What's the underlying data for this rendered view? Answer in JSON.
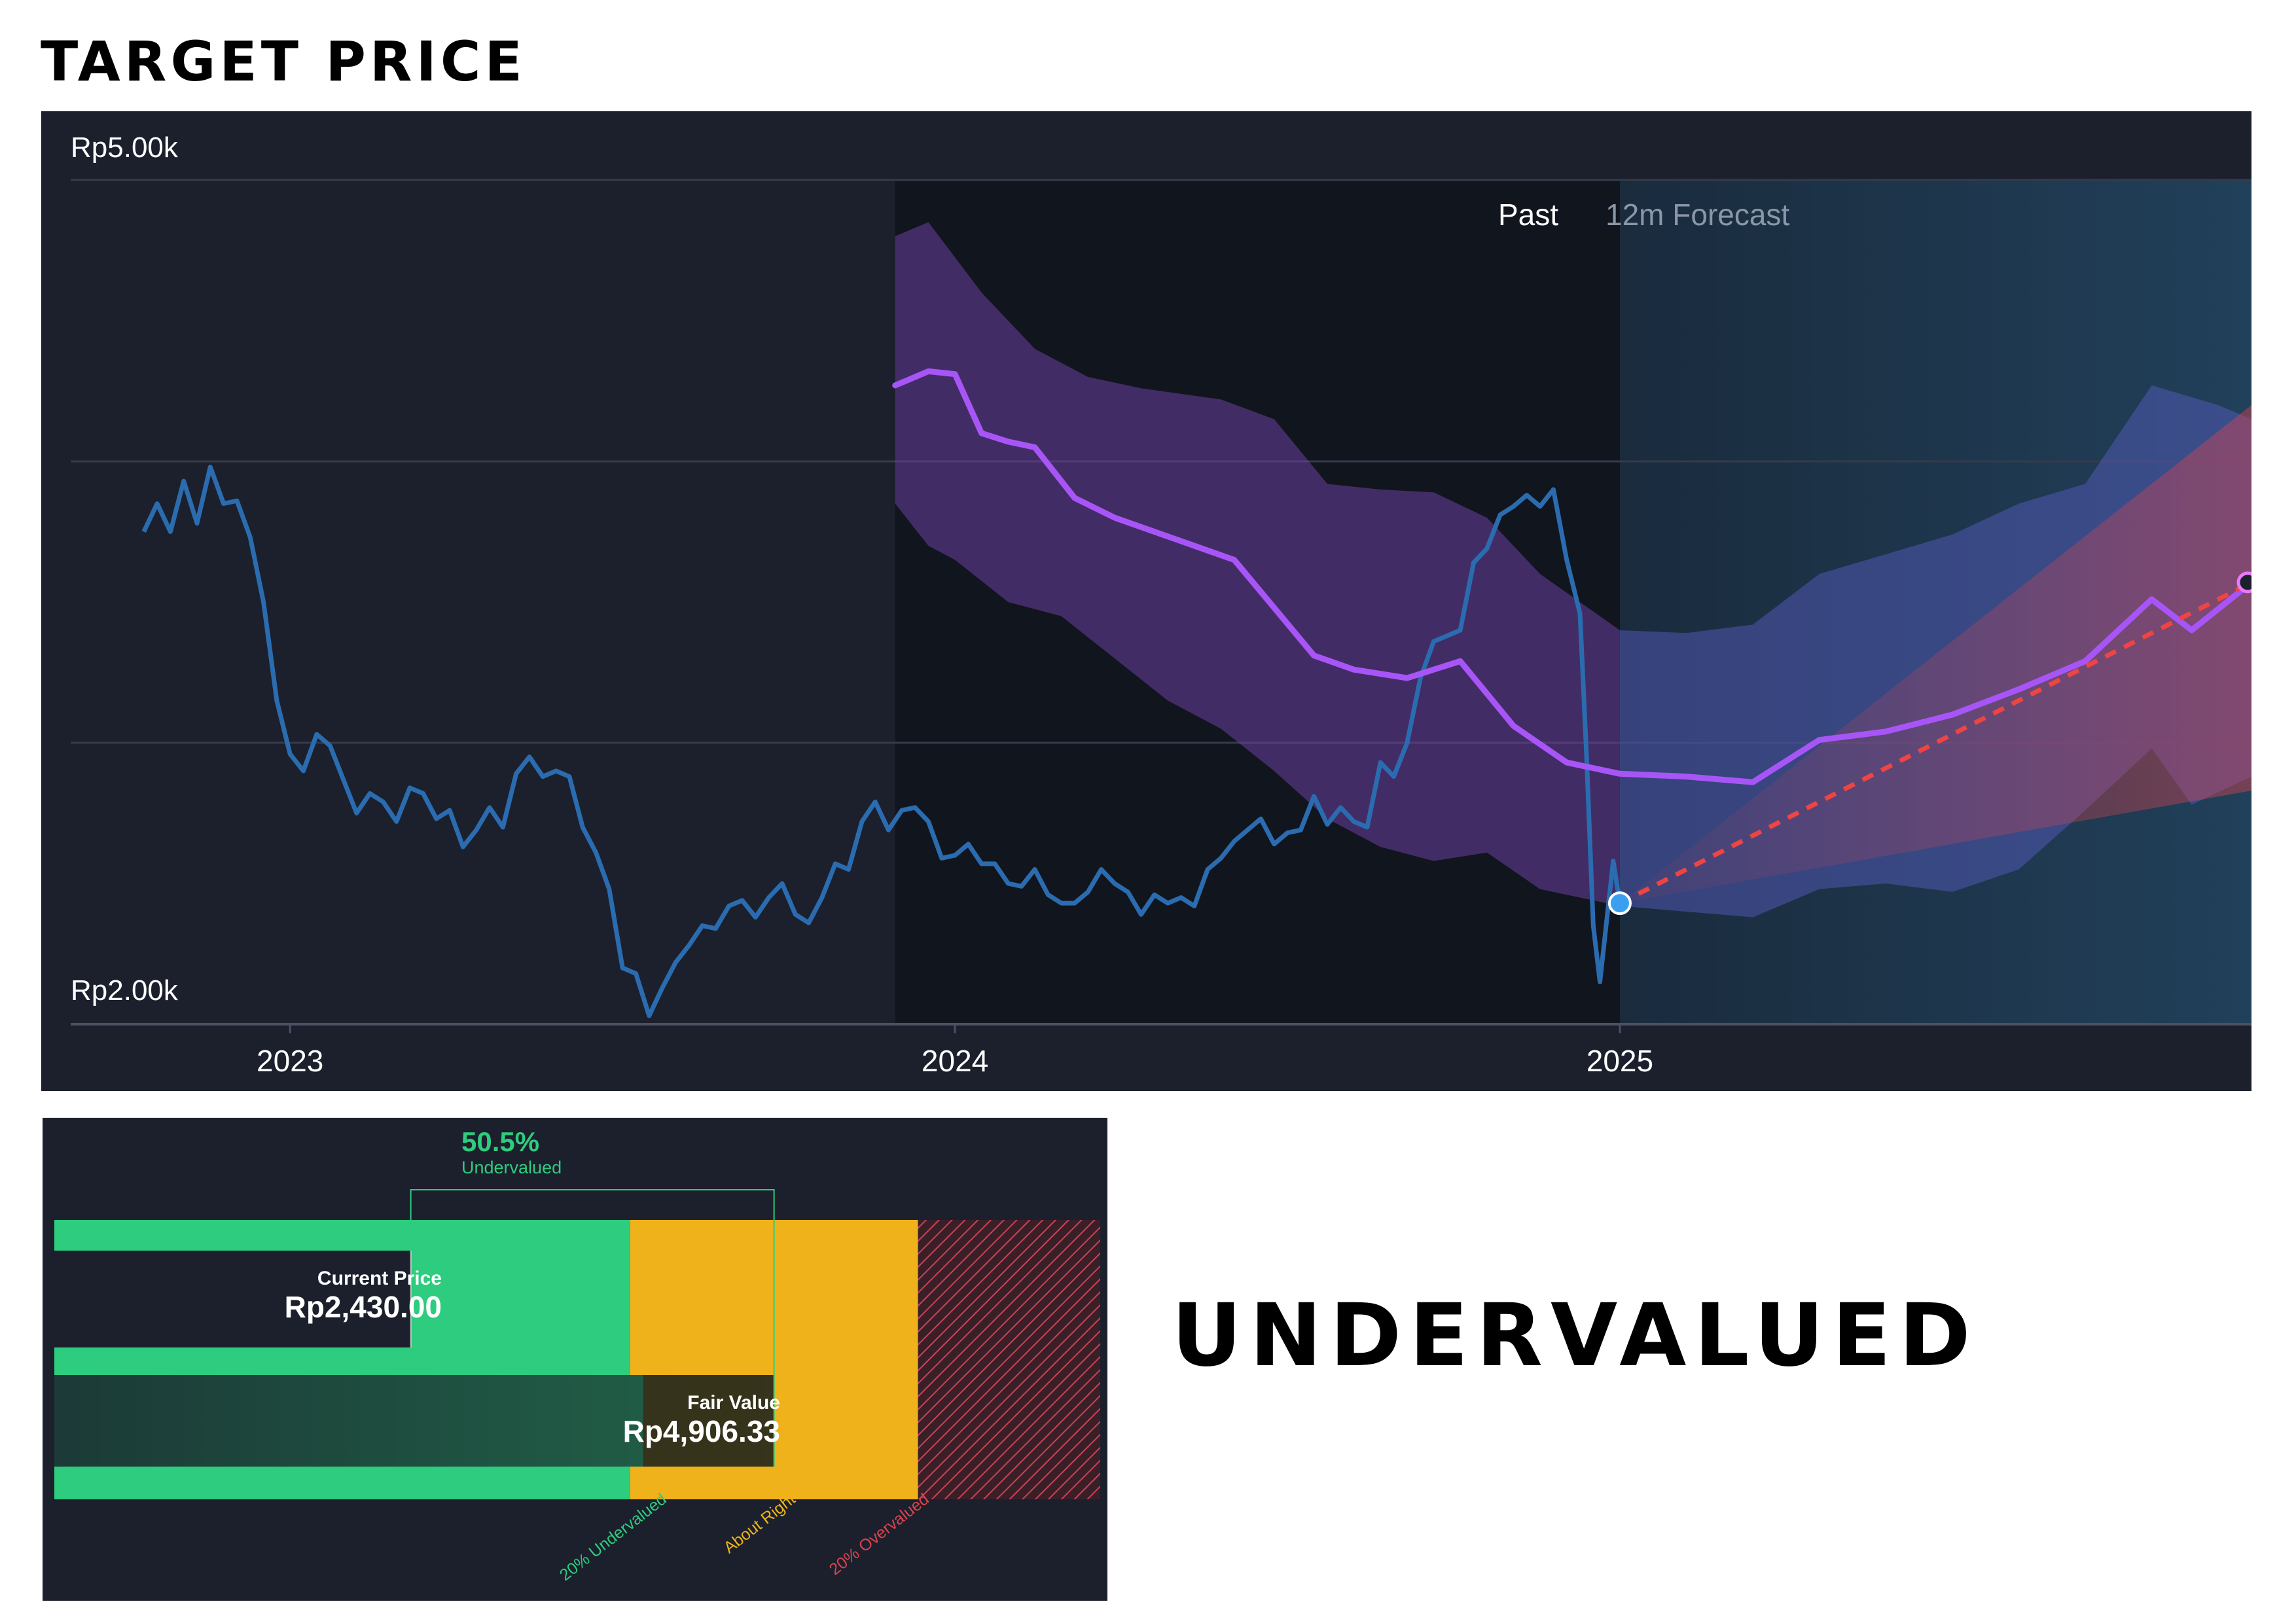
{
  "headings": {
    "target_price": "TARGET PRICE",
    "verdict": "UNDERVALUED"
  },
  "colors": {
    "background": "#1b202c",
    "price_line": "#2b6cb0",
    "analyst_target": "#a855f7",
    "analyst_band": "#6b3fa0",
    "forecast_band": "#5b5fc7",
    "forecast_region": "#1e3347",
    "projection_line": "#ef4444",
    "undervalued": "#2ecc7e",
    "about_right": "#efb21a",
    "overvalued": "#d9434f",
    "current_price_dot": "#3b9ff0"
  },
  "chart_data": [
    {
      "type": "line",
      "title": "",
      "xlabel": "",
      "ylabel": "",
      "x_ticks": [
        "2023",
        "2024",
        "2025"
      ],
      "y_labels": [
        "Rp5.00k",
        "Rp2.00k"
      ],
      "xlim": [
        2022.67,
        2025.95
      ],
      "ylim": [
        2000,
        5000
      ],
      "grid": true,
      "region_labels": {
        "past": "Past",
        "forecast": "12m Forecast"
      },
      "forecast_start": 2025.0,
      "series": [
        {
          "role": "share-price",
          "points": [
            [
              2022.78,
              3750
            ],
            [
              2022.8,
              3850
            ],
            [
              2022.82,
              3750
            ],
            [
              2022.84,
              3930
            ],
            [
              2022.86,
              3780
            ],
            [
              2022.88,
              3980
            ],
            [
              2022.9,
              3850
            ],
            [
              2022.92,
              3860
            ],
            [
              2022.94,
              3730
            ],
            [
              2022.96,
              3500
            ],
            [
              2022.98,
              3150
            ],
            [
              2023.0,
              2960
            ],
            [
              2023.02,
              2900
            ],
            [
              2023.04,
              3030
            ],
            [
              2023.06,
              2990
            ],
            [
              2023.08,
              2870
            ],
            [
              2023.1,
              2750
            ],
            [
              2023.12,
              2820
            ],
            [
              2023.14,
              2790
            ],
            [
              2023.16,
              2720
            ],
            [
              2023.18,
              2840
            ],
            [
              2023.2,
              2820
            ],
            [
              2023.22,
              2730
            ],
            [
              2023.24,
              2760
            ],
            [
              2023.26,
              2630
            ],
            [
              2023.28,
              2690
            ],
            [
              2023.3,
              2770
            ],
            [
              2023.32,
              2700
            ],
            [
              2023.34,
              2890
            ],
            [
              2023.36,
              2950
            ],
            [
              2023.38,
              2880
            ],
            [
              2023.4,
              2900
            ],
            [
              2023.42,
              2880
            ],
            [
              2023.44,
              2700
            ],
            [
              2023.46,
              2610
            ],
            [
              2023.48,
              2480
            ],
            [
              2023.5,
              2200
            ],
            [
              2023.52,
              2180
            ],
            [
              2023.54,
              2030
            ],
            [
              2023.56,
              2130
            ],
            [
              2023.58,
              2220
            ],
            [
              2023.6,
              2280
            ],
            [
              2023.62,
              2350
            ],
            [
              2023.64,
              2340
            ],
            [
              2023.66,
              2420
            ],
            [
              2023.68,
              2440
            ],
            [
              2023.7,
              2380
            ],
            [
              2023.72,
              2450
            ],
            [
              2023.74,
              2500
            ],
            [
              2023.76,
              2390
            ],
            [
              2023.78,
              2360
            ],
            [
              2023.8,
              2450
            ],
            [
              2023.82,
              2570
            ],
            [
              2023.84,
              2550
            ],
            [
              2023.86,
              2720
            ],
            [
              2023.88,
              2790
            ],
            [
              2023.9,
              2690
            ],
            [
              2023.92,
              2760
            ],
            [
              2023.94,
              2770
            ],
            [
              2023.96,
              2720
            ],
            [
              2023.98,
              2590
            ],
            [
              2024.0,
              2600
            ],
            [
              2024.02,
              2640
            ],
            [
              2024.04,
              2570
            ],
            [
              2024.06,
              2570
            ],
            [
              2024.08,
              2500
            ],
            [
              2024.1,
              2490
            ],
            [
              2024.12,
              2550
            ],
            [
              2024.14,
              2460
            ],
            [
              2024.16,
              2430
            ],
            [
              2024.18,
              2430
            ],
            [
              2024.2,
              2470
            ],
            [
              2024.22,
              2550
            ],
            [
              2024.24,
              2500
            ],
            [
              2024.26,
              2470
            ],
            [
              2024.28,
              2390
            ],
            [
              2024.3,
              2460
            ],
            [
              2024.32,
              2430
            ],
            [
              2024.34,
              2450
            ],
            [
              2024.36,
              2420
            ],
            [
              2024.38,
              2550
            ],
            [
              2024.4,
              2590
            ],
            [
              2024.42,
              2650
            ],
            [
              2024.44,
              2690
            ],
            [
              2024.46,
              2730
            ],
            [
              2024.48,
              2640
            ],
            [
              2024.5,
              2680
            ],
            [
              2024.52,
              2690
            ],
            [
              2024.54,
              2810
            ],
            [
              2024.56,
              2710
            ],
            [
              2024.58,
              2770
            ],
            [
              2024.6,
              2720
            ],
            [
              2024.62,
              2700
            ],
            [
              2024.64,
              2930
            ],
            [
              2024.66,
              2880
            ],
            [
              2024.68,
              3000
            ],
            [
              2024.7,
              3230
            ],
            [
              2024.72,
              3360
            ],
            [
              2024.74,
              3380
            ],
            [
              2024.76,
              3400
            ],
            [
              2024.78,
              3640
            ],
            [
              2024.8,
              3690
            ],
            [
              2024.82,
              3810
            ],
            [
              2024.84,
              3840
            ],
            [
              2024.86,
              3880
            ],
            [
              2024.88,
              3840
            ],
            [
              2024.9,
              3900
            ],
            [
              2024.92,
              3650
            ],
            [
              2024.94,
              3460
            ],
            [
              2024.95,
              2950
            ],
            [
              2024.96,
              2350
            ],
            [
              2024.97,
              2150
            ],
            [
              2024.99,
              2580
            ],
            [
              2025.0,
              2430
            ]
          ]
        },
        {
          "role": "analyst-target",
          "points": [
            [
              2023.91,
              4270
            ],
            [
              2023.96,
              4320
            ],
            [
              2024.0,
              4310
            ],
            [
              2024.04,
              4100
            ],
            [
              2024.08,
              4070
            ],
            [
              2024.12,
              4050
            ],
            [
              2024.18,
              3870
            ],
            [
              2024.24,
              3800
            ],
            [
              2024.3,
              3750
            ],
            [
              2024.36,
              3700
            ],
            [
              2024.42,
              3650
            ],
            [
              2024.48,
              3480
            ],
            [
              2024.54,
              3310
            ],
            [
              2024.6,
              3260
            ],
            [
              2024.68,
              3230
            ],
            [
              2024.76,
              3290
            ],
            [
              2024.84,
              3060
            ],
            [
              2024.92,
              2930
            ],
            [
              2025.0,
              2890
            ],
            [
              2025.1,
              2880
            ],
            [
              2025.2,
              2860
            ],
            [
              2025.3,
              3010
            ],
            [
              2025.4,
              3040
            ],
            [
              2025.5,
              3100
            ],
            [
              2025.6,
              3190
            ],
            [
              2025.7,
              3290
            ],
            [
              2025.8,
              3510
            ],
            [
              2025.86,
              3400
            ],
            [
              2025.95,
              3570
            ]
          ],
          "high": [
            [
              2023.91,
              4800
            ],
            [
              2023.96,
              4850
            ],
            [
              2024.04,
              4600
            ],
            [
              2024.12,
              4400
            ],
            [
              2024.2,
              4300
            ],
            [
              2024.28,
              4260
            ],
            [
              2024.4,
              4220
            ],
            [
              2024.48,
              4150
            ],
            [
              2024.56,
              3920
            ],
            [
              2024.64,
              3900
            ],
            [
              2024.72,
              3890
            ],
            [
              2024.8,
              3800
            ],
            [
              2024.88,
              3600
            ],
            [
              2025.0,
              3400
            ],
            [
              2025.1,
              3390
            ],
            [
              2025.2,
              3420
            ],
            [
              2025.3,
              3600
            ],
            [
              2025.4,
              3670
            ],
            [
              2025.5,
              3740
            ],
            [
              2025.6,
              3850
            ],
            [
              2025.7,
              3920
            ],
            [
              2025.8,
              4270
            ],
            [
              2025.9,
              4200
            ],
            [
              2025.95,
              4150
            ]
          ],
          "low": [
            [
              2023.91,
              3850
            ],
            [
              2023.96,
              3700
            ],
            [
              2024.0,
              3650
            ],
            [
              2024.08,
              3500
            ],
            [
              2024.16,
              3450
            ],
            [
              2024.24,
              3300
            ],
            [
              2024.32,
              3150
            ],
            [
              2024.4,
              3050
            ],
            [
              2024.48,
              2900
            ],
            [
              2024.56,
              2730
            ],
            [
              2024.64,
              2630
            ],
            [
              2024.72,
              2580
            ],
            [
              2024.8,
              2610
            ],
            [
              2024.88,
              2480
            ],
            [
              2025.0,
              2420
            ],
            [
              2025.1,
              2400
            ],
            [
              2025.2,
              2380
            ],
            [
              2025.3,
              2480
            ],
            [
              2025.4,
              2500
            ],
            [
              2025.5,
              2470
            ],
            [
              2025.6,
              2550
            ],
            [
              2025.7,
              2760
            ],
            [
              2025.8,
              2980
            ],
            [
              2025.86,
              2780
            ],
            [
              2025.95,
              2880
            ]
          ]
        },
        {
          "role": "projection",
          "style": "dashed",
          "points": [
            [
              2025.0,
              2430
            ],
            [
              2025.95,
              3570
            ]
          ],
          "cone_high": 4200,
          "cone_low": 2830
        }
      ]
    },
    {
      "type": "bar",
      "title": "",
      "header_value": "50.5%",
      "header_label": "Undervalued",
      "current_price": {
        "label": "Current Price",
        "value": "Rp2,430.00",
        "amount": 2430.0
      },
      "fair_value": {
        "label": "Fair Value",
        "value": "Rp4,906.33",
        "amount": 4906.33
      },
      "zones": [
        {
          "label": "20% Undervalued",
          "from": 0,
          "to": 3925.06
        },
        {
          "label": "About Right",
          "from": 3925.06,
          "to": 5887.6
        },
        {
          "label": "20% Overvalued",
          "from": 5887.6,
          "to": 7130
        }
      ],
      "xlim": [
        0,
        7130
      ]
    }
  ]
}
